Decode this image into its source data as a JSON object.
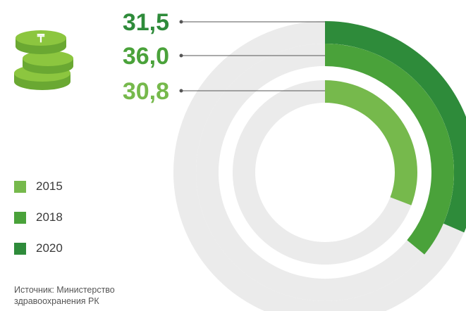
{
  "chart_data": {
    "type": "radial-bar",
    "unit": "%",
    "max_value": 100,
    "series": [
      {
        "name": "2020",
        "value": 31.5,
        "label": "31,5",
        "color": "#2e8b3a"
      },
      {
        "name": "2018",
        "value": 36.0,
        "label": "36,0",
        "color": "#4aa23a"
      },
      {
        "name": "2015",
        "value": 30.8,
        "label": "30,8",
        "color": "#76b94c"
      }
    ],
    "track_color": "#ebebeb"
  },
  "legend": [
    {
      "label": "2015",
      "color": "#76b94c"
    },
    {
      "label": "2018",
      "color": "#4aa23a"
    },
    {
      "label": "2020",
      "color": "#2e8b3a"
    }
  ],
  "source": {
    "line1": "Источник: Министерство",
    "line2": "здравоохранения РК"
  },
  "coin_icon": "stacked-coins-tenge-icon",
  "coin_colors": {
    "top": "#8cc63f",
    "side": "#6aa832",
    "symbol": "#ffffff"
  }
}
